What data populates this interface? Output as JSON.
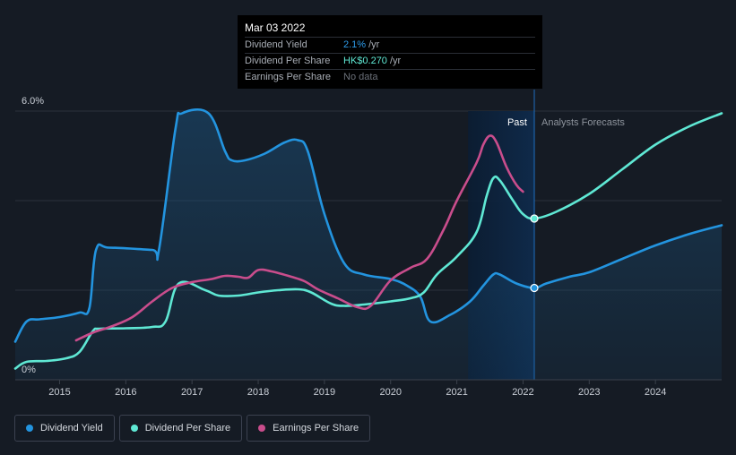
{
  "colors": {
    "background": "#151b24",
    "dividend_yield": "#2394df",
    "dividend_per_share": "#5fe8d4",
    "earnings_per_share": "#c94d8c",
    "forecast_band": "#0f2a4a"
  },
  "tooltip": {
    "date": "Mar 03 2022",
    "rows": [
      {
        "label": "Dividend Yield",
        "value": "2.1%",
        "unit": "/yr"
      },
      {
        "label": "Dividend Per Share",
        "value": "HK$0.270",
        "unit": "/yr"
      },
      {
        "label": "Earnings Per Share",
        "value": "No data",
        "unit": ""
      }
    ]
  },
  "regions": {
    "past_label": "Past",
    "forecast_label": "Analysts Forecasts"
  },
  "legend": [
    {
      "label": "Dividend Yield",
      "icon": "circle-dot-icon",
      "color": "#2394df"
    },
    {
      "label": "Dividend Per Share",
      "icon": "circle-dot-icon",
      "color": "#5fe8d4"
    },
    {
      "label": "Earnings Per Share",
      "icon": "circle-dot-icon",
      "color": "#c94d8c"
    }
  ],
  "chart_data": {
    "type": "line",
    "title": "",
    "xlabel": "",
    "ylabel": "",
    "x_ticks": [
      "2015",
      "2016",
      "2017",
      "2018",
      "2019",
      "2020",
      "2021",
      "2022",
      "2023",
      "2024"
    ],
    "y_ticks": [
      "0%",
      "6.0%"
    ],
    "xlim": [
      2014.33,
      2025.0
    ],
    "ylim": [
      0,
      6.0
    ],
    "grid": true,
    "past_forecast_split": 2022.17,
    "past_band_start": 2021.17,
    "series": [
      {
        "name": "Dividend Yield",
        "axis": "percent",
        "filled": true,
        "points": [
          [
            2014.33,
            0.85
          ],
          [
            2014.5,
            1.3
          ],
          [
            2014.7,
            1.35
          ],
          [
            2015.0,
            1.4
          ],
          [
            2015.3,
            1.5
          ],
          [
            2015.45,
            1.6
          ],
          [
            2015.55,
            2.9
          ],
          [
            2015.75,
            2.95
          ],
          [
            2016.4,
            2.9
          ],
          [
            2016.5,
            2.9
          ],
          [
            2016.75,
            5.6
          ],
          [
            2016.85,
            5.95
          ],
          [
            2017.25,
            5.95
          ],
          [
            2017.5,
            5.1
          ],
          [
            2017.6,
            4.9
          ],
          [
            2017.8,
            4.9
          ],
          [
            2018.1,
            5.05
          ],
          [
            2018.4,
            5.3
          ],
          [
            2018.6,
            5.35
          ],
          [
            2018.75,
            5.1
          ],
          [
            2019.0,
            3.7
          ],
          [
            2019.3,
            2.6
          ],
          [
            2019.6,
            2.35
          ],
          [
            2020.0,
            2.25
          ],
          [
            2020.25,
            2.1
          ],
          [
            2020.45,
            1.85
          ],
          [
            2020.6,
            1.3
          ],
          [
            2020.9,
            1.45
          ],
          [
            2021.2,
            1.75
          ],
          [
            2021.4,
            2.1
          ],
          [
            2021.55,
            2.35
          ],
          [
            2021.65,
            2.35
          ],
          [
            2021.9,
            2.15
          ],
          [
            2022.17,
            2.05
          ],
          [
            2022.35,
            2.15
          ],
          [
            2022.7,
            2.3
          ],
          [
            2023.0,
            2.4
          ],
          [
            2023.5,
            2.7
          ],
          [
            2024.0,
            3.0
          ],
          [
            2024.5,
            3.25
          ],
          [
            2025.0,
            3.45
          ]
        ]
      },
      {
        "name": "Dividend Per Share",
        "axis": "relative",
        "points": [
          [
            2014.33,
            0.25
          ],
          [
            2014.5,
            0.4
          ],
          [
            2014.8,
            0.42
          ],
          [
            2015.1,
            0.48
          ],
          [
            2015.3,
            0.62
          ],
          [
            2015.5,
            1.08
          ],
          [
            2015.6,
            1.14
          ],
          [
            2016.0,
            1.15
          ],
          [
            2016.4,
            1.18
          ],
          [
            2016.6,
            1.3
          ],
          [
            2016.8,
            2.15
          ],
          [
            2017.2,
            2.0
          ],
          [
            2017.4,
            1.88
          ],
          [
            2017.7,
            1.88
          ],
          [
            2018.0,
            1.95
          ],
          [
            2018.3,
            2.0
          ],
          [
            2018.6,
            2.02
          ],
          [
            2018.8,
            1.95
          ],
          [
            2019.1,
            1.7
          ],
          [
            2019.3,
            1.65
          ],
          [
            2019.6,
            1.68
          ],
          [
            2020.0,
            1.75
          ],
          [
            2020.3,
            1.82
          ],
          [
            2020.5,
            1.95
          ],
          [
            2020.7,
            2.35
          ],
          [
            2021.0,
            2.75
          ],
          [
            2021.3,
            3.3
          ],
          [
            2021.45,
            4.1
          ],
          [
            2021.55,
            4.5
          ],
          [
            2021.65,
            4.45
          ],
          [
            2021.85,
            4.0
          ],
          [
            2022.0,
            3.7
          ],
          [
            2022.17,
            3.6
          ],
          [
            2022.5,
            3.75
          ],
          [
            2023.0,
            4.15
          ],
          [
            2023.5,
            4.7
          ],
          [
            2024.0,
            5.25
          ],
          [
            2024.5,
            5.65
          ],
          [
            2025.0,
            5.95
          ]
        ]
      },
      {
        "name": "Earnings Per Share",
        "axis": "relative",
        "points": [
          [
            2015.25,
            0.88
          ],
          [
            2015.5,
            1.05
          ],
          [
            2015.8,
            1.2
          ],
          [
            2016.1,
            1.4
          ],
          [
            2016.4,
            1.75
          ],
          [
            2016.7,
            2.05
          ],
          [
            2017.0,
            2.18
          ],
          [
            2017.3,
            2.25
          ],
          [
            2017.5,
            2.32
          ],
          [
            2017.7,
            2.3
          ],
          [
            2017.85,
            2.28
          ],
          [
            2018.0,
            2.45
          ],
          [
            2018.2,
            2.42
          ],
          [
            2018.5,
            2.3
          ],
          [
            2018.7,
            2.2
          ],
          [
            2018.9,
            2.02
          ],
          [
            2019.2,
            1.82
          ],
          [
            2019.5,
            1.62
          ],
          [
            2019.7,
            1.65
          ],
          [
            2020.0,
            2.22
          ],
          [
            2020.3,
            2.5
          ],
          [
            2020.55,
            2.7
          ],
          [
            2020.8,
            3.35
          ],
          [
            2021.0,
            4.0
          ],
          [
            2021.3,
            4.85
          ],
          [
            2021.4,
            5.25
          ],
          [
            2021.5,
            5.45
          ],
          [
            2021.6,
            5.3
          ],
          [
            2021.75,
            4.75
          ],
          [
            2021.9,
            4.35
          ],
          [
            2022.0,
            4.2
          ]
        ]
      }
    ],
    "highlight_points": [
      {
        "series": "Dividend Yield",
        "x": 2022.17,
        "y": 2.05
      },
      {
        "series": "Dividend Per Share",
        "x": 2022.17,
        "y": 3.6
      }
    ]
  }
}
